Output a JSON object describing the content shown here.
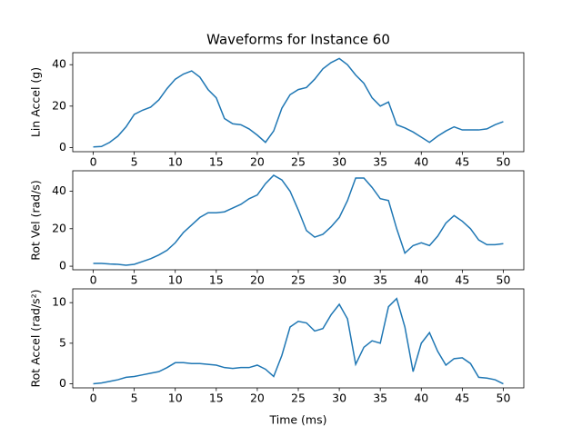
{
  "chart_data": [
    {
      "type": "line",
      "title": "Waveforms for Instance 60",
      "ylabel": "Lin Accel (g)",
      "color": "#1f77b4",
      "x": [
        0,
        1,
        2,
        3,
        4,
        5,
        6,
        7,
        8,
        9,
        10,
        11,
        12,
        13,
        14,
        15,
        16,
        17,
        18,
        19,
        20,
        21,
        22,
        23,
        24,
        25,
        26,
        27,
        28,
        29,
        30,
        31,
        32,
        33,
        34,
        35,
        36,
        37,
        38,
        39,
        40,
        41,
        42,
        43,
        44,
        45,
        46,
        47,
        48,
        49,
        50
      ],
      "values": [
        0.3,
        0.5,
        2.5,
        5.5,
        10,
        16,
        18,
        19.5,
        23,
        28.5,
        33,
        35.5,
        37,
        34,
        28,
        24,
        14,
        11.5,
        11,
        9,
        6,
        2.5,
        8,
        19,
        25.5,
        28,
        29,
        33,
        38,
        41,
        43,
        40,
        35,
        31,
        24,
        20,
        22,
        11,
        9.5,
        7.5,
        5,
        2.5,
        5.5,
        8,
        10,
        8.5,
        8.5,
        8.5,
        9,
        11,
        12.5
      ],
      "xlim": [
        -2.5,
        52.5
      ],
      "xticks": [
        0,
        5,
        10,
        15,
        20,
        25,
        30,
        35,
        40,
        45,
        50
      ],
      "ylim": [
        -2,
        45.8
      ],
      "yticks": [
        0,
        20,
        40
      ]
    },
    {
      "type": "line",
      "ylabel": "Rot Vel (rad/s)",
      "color": "#1f77b4",
      "x": [
        0,
        1,
        2,
        3,
        4,
        5,
        6,
        7,
        8,
        9,
        10,
        11,
        12,
        13,
        14,
        15,
        16,
        17,
        18,
        19,
        20,
        21,
        22,
        23,
        24,
        25,
        26,
        27,
        28,
        29,
        30,
        31,
        32,
        33,
        34,
        35,
        36,
        37,
        38,
        39,
        40,
        41,
        42,
        43,
        44,
        45,
        46,
        47,
        48,
        49,
        50
      ],
      "values": [
        1.5,
        1.5,
        1.2,
        1,
        0.5,
        1,
        2.5,
        4,
        6,
        8.5,
        12.5,
        18,
        22,
        26,
        28.5,
        28.5,
        29,
        31,
        33,
        36,
        38,
        44,
        48.5,
        46,
        40,
        30,
        19,
        15.5,
        17,
        21,
        26,
        35,
        47,
        47,
        42,
        36,
        35,
        20,
        7,
        11,
        12.5,
        11,
        16,
        23,
        27,
        24,
        20,
        14,
        11.5,
        11.5,
        12
      ],
      "xlim": [
        -2.5,
        52.5
      ],
      "xticks": [
        0,
        5,
        10,
        15,
        20,
        25,
        30,
        35,
        40,
        45,
        50
      ],
      "ylim": [
        -1.9,
        50.9
      ],
      "yticks": [
        0,
        20,
        40
      ]
    },
    {
      "type": "line",
      "ylabel": "Rot Accel (rad/s²)",
      "xlabel": "Time (ms)",
      "color": "#1f77b4",
      "x": [
        0,
        1,
        2,
        3,
        4,
        5,
        6,
        7,
        8,
        9,
        10,
        11,
        12,
        13,
        14,
        15,
        16,
        17,
        18,
        19,
        20,
        21,
        22,
        23,
        24,
        25,
        26,
        27,
        28,
        29,
        30,
        31,
        32,
        33,
        34,
        35,
        36,
        37,
        38,
        39,
        40,
        41,
        42,
        43,
        44,
        45,
        46,
        47,
        48,
        49,
        50
      ],
      "values": [
        0,
        0.1,
        0.3,
        0.5,
        0.8,
        0.9,
        1.1,
        1.3,
        1.5,
        2,
        2.6,
        2.6,
        2.5,
        2.5,
        2.4,
        2.3,
        2,
        1.9,
        2,
        2,
        2.3,
        1.8,
        0.9,
        3.5,
        7,
        7.7,
        7.5,
        6.5,
        6.8,
        8.5,
        9.8,
        8,
        2.4,
        4.5,
        5.3,
        5,
        9.5,
        10.5,
        7,
        1.5,
        5,
        6.3,
        4,
        2.3,
        3.1,
        3.2,
        2.5,
        0.8,
        0.7,
        0.5,
        0
      ],
      "xlim": [
        -2.5,
        52.5
      ],
      "xticks": [
        0,
        5,
        10,
        15,
        20,
        25,
        30,
        35,
        40,
        45,
        50
      ],
      "ylim": [
        -0.5,
        11.7
      ],
      "yticks": [
        0,
        5,
        10
      ]
    }
  ]
}
